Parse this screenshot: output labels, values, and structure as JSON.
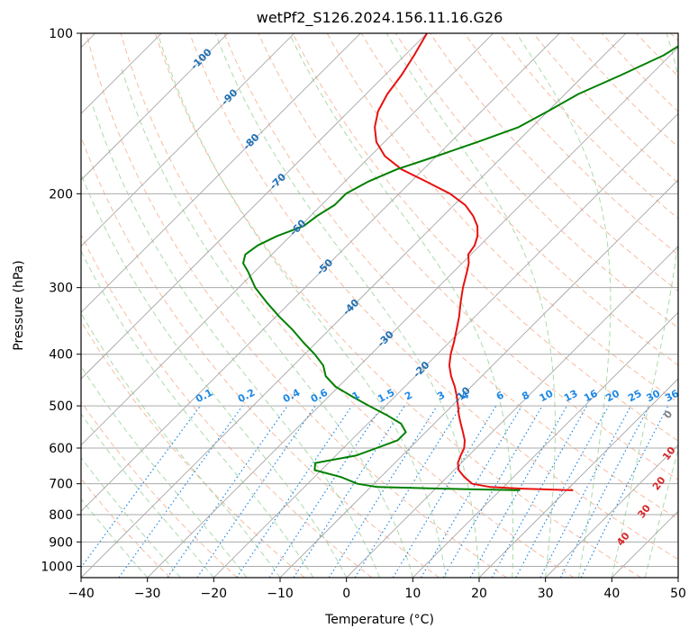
{
  "chart_data": {
    "type": "line",
    "title": "wetPf2_S126.2024.156.11.16.G26",
    "xlabel": "Temperature (°C)",
    "ylabel": "Pressure (hPa)",
    "xlim": [
      -40,
      50
    ],
    "ylim": [
      1050,
      100
    ],
    "y_scale": "log",
    "grid": true,
    "x_ticks": [
      -40,
      -30,
      -20,
      -10,
      0,
      10,
      20,
      30,
      40,
      50
    ],
    "y_ticks": [
      100,
      200,
      300,
      400,
      500,
      600,
      700,
      800,
      900,
      1000
    ],
    "series": [
      {
        "color": "#e8110f",
        "points": [
          [
            100,
            -70.0
          ],
          [
            110,
            -68.6
          ],
          [
            120,
            -67.5
          ],
          [
            130,
            -66.8
          ],
          [
            140,
            -65.6
          ],
          [
            150,
            -63.7
          ],
          [
            160,
            -61.2
          ],
          [
            170,
            -57.8
          ],
          [
            180,
            -53.3
          ],
          [
            190,
            -47.6
          ],
          [
            200,
            -42.3
          ],
          [
            210,
            -38.3
          ],
          [
            220,
            -35.5
          ],
          [
            230,
            -33.3
          ],
          [
            240,
            -31.8
          ],
          [
            250,
            -30.8
          ],
          [
            260,
            -30.4
          ],
          [
            270,
            -29.0
          ],
          [
            280,
            -28.0
          ],
          [
            300,
            -26.2
          ],
          [
            320,
            -24.3
          ],
          [
            340,
            -22.4
          ],
          [
            360,
            -20.8
          ],
          [
            380,
            -19.3
          ],
          [
            400,
            -18.0
          ],
          [
            420,
            -16.5
          ],
          [
            440,
            -14.6
          ],
          [
            460,
            -12.5
          ],
          [
            480,
            -10.7
          ],
          [
            500,
            -9.1
          ],
          [
            520,
            -7.6
          ],
          [
            540,
            -6.0
          ],
          [
            560,
            -4.4
          ],
          [
            580,
            -2.9
          ],
          [
            600,
            -1.8
          ],
          [
            620,
            -1.2
          ],
          [
            640,
            -0.5
          ],
          [
            660,
            0.7
          ],
          [
            680,
            2.6
          ],
          [
            700,
            4.8
          ],
          [
            710,
            8.0
          ],
          [
            715,
            13.0
          ],
          [
            718,
            18.0
          ],
          [
            720,
            21.0
          ]
        ]
      },
      {
        "color": "#008000",
        "points": [
          [
            100,
            -29.0
          ],
          [
            110,
            -31.0
          ],
          [
            120,
            -34.5
          ],
          [
            130,
            -38.0
          ],
          [
            140,
            -40.0
          ],
          [
            150,
            -42.0
          ],
          [
            160,
            -46.0
          ],
          [
            170,
            -50.0
          ],
          [
            180,
            -54.0
          ],
          [
            190,
            -56.5
          ],
          [
            200,
            -58.0
          ],
          [
            210,
            -58.0
          ],
          [
            220,
            -59.0
          ],
          [
            230,
            -59.5
          ],
          [
            240,
            -62.0
          ],
          [
            250,
            -63.5
          ],
          [
            260,
            -64.0
          ],
          [
            270,
            -63.0
          ],
          [
            280,
            -61.0
          ],
          [
            300,
            -57.5
          ],
          [
            320,
            -53.5
          ],
          [
            340,
            -49.5
          ],
          [
            360,
            -45.5
          ],
          [
            380,
            -42.0
          ],
          [
            400,
            -38.5
          ],
          [
            420,
            -35.5
          ],
          [
            440,
            -33.5
          ],
          [
            460,
            -30.5
          ],
          [
            480,
            -26.5
          ],
          [
            500,
            -22.5
          ],
          [
            520,
            -18.5
          ],
          [
            540,
            -15.0
          ],
          [
            560,
            -13.0
          ],
          [
            580,
            -13.0
          ],
          [
            600,
            -15.0
          ],
          [
            620,
            -17.0
          ],
          [
            640,
            -22.0
          ],
          [
            660,
            -21.0
          ],
          [
            680,
            -16.0
          ],
          [
            700,
            -12.5
          ],
          [
            710,
            -9.0
          ],
          [
            715,
            1.0
          ],
          [
            720,
            13.0
          ]
        ]
      }
    ],
    "isotherm_labels": [
      "-100",
      "-90",
      "-80",
      "-70",
      "-60",
      "-50",
      "-40",
      "-30",
      "-20",
      "-10"
    ],
    "mixing_ratio_labels": [
      "0.1",
      "0.2",
      "0.4",
      "0.6",
      "1",
      "1.5",
      "2",
      "3",
      "4",
      "6",
      "8",
      "10",
      "13",
      "16",
      "20",
      "25",
      "30",
      "36"
    ],
    "moist_adiabat_labels": [
      "0",
      "10",
      "20",
      "30",
      "40"
    ],
    "colors": {
      "isotherm": "#9e9e9e",
      "isotherm_label": "#1f6fb4",
      "mixing_ratio": "#1e88e5",
      "dry_adiabat": "#f4a582",
      "moist_adiabat": "#8fce8f",
      "moist_label": "#d62728",
      "neutral_label": "#808080"
    }
  }
}
